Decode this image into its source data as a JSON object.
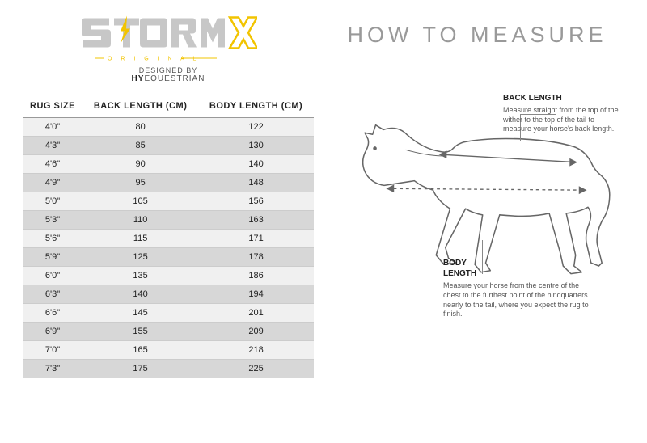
{
  "brand": {
    "storm_fill": "#c7c7c7",
    "x_stroke": "#f2c400",
    "original_text": "O R I G I N A L",
    "original_color": "#f2c400",
    "bolt_fill": "#f2c400",
    "designed_by": "DESIGNED BY",
    "hy_bold": "HY",
    "hy_rest": "EQUESTRIAN"
  },
  "table": {
    "columns": [
      "RUG SIZE",
      "BACK LENGTH (CM)",
      "BODY LENGTH (CM)"
    ],
    "rows": [
      [
        "4'0\"",
        "80",
        "122"
      ],
      [
        "4'3\"",
        "85",
        "130"
      ],
      [
        "4'6\"",
        "90",
        "140"
      ],
      [
        "4'9\"",
        "95",
        "148"
      ],
      [
        "5'0\"",
        "105",
        "156"
      ],
      [
        "5'3\"",
        "110",
        "163"
      ],
      [
        "5'6\"",
        "115",
        "171"
      ],
      [
        "5'9\"",
        "125",
        "178"
      ],
      [
        "6'0\"",
        "135",
        "186"
      ],
      [
        "6'3\"",
        "140",
        "194"
      ],
      [
        "6'6\"",
        "145",
        "201"
      ],
      [
        "6'9\"",
        "155",
        "209"
      ],
      [
        "7'0\"",
        "165",
        "218"
      ],
      [
        "7'3\"",
        "175",
        "225"
      ]
    ],
    "odd_bg": "#f0f0f0",
    "even_bg": "#d7d7d7",
    "header_border": "#999999",
    "row_border": "#cccccc",
    "text_color": "#222222"
  },
  "right": {
    "title": "HOW TO MEASURE",
    "title_color": "#999999",
    "horse_stroke": "#666666",
    "horse_stroke_width": 1.6,
    "arrow_color": "#666666",
    "dash": "3 3",
    "back": {
      "head": "BACK LENGTH",
      "body": "Measure straight from the top of the wither to the top of the tail to measure your horse's back length."
    },
    "body": {
      "head": "BODY\nLENGTH",
      "body": "Measure your horse from the centre of the chest to the furthest point of the hindquarters nearly to the tail, where you expect the rug to finish."
    }
  }
}
